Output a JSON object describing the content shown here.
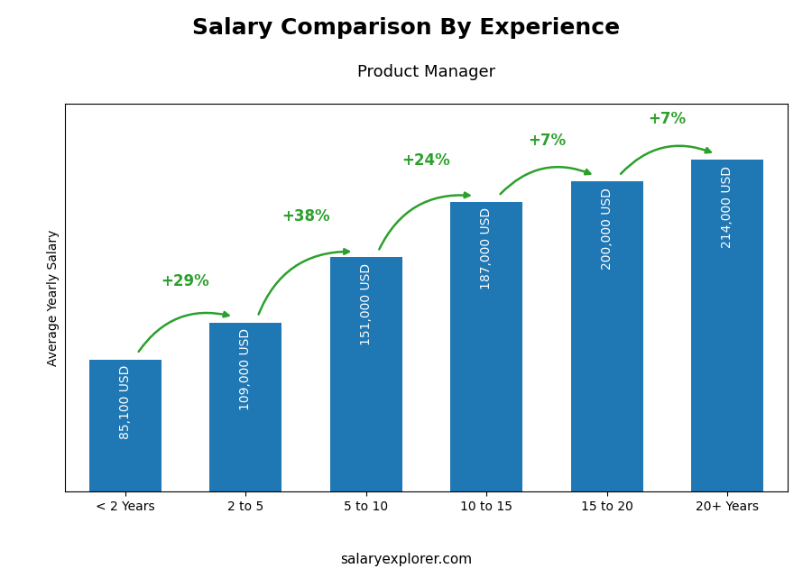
{
  "chart_data": {
    "type": "bar",
    "title": "Salary Comparison By Experience",
    "subtitle": "Product Manager",
    "categories": [
      "< 2 Years",
      "2 to 5",
      "5 to 10",
      "10 to 15",
      "15 to 20",
      "20+ Years"
    ],
    "values": [
      85100,
      109000,
      151000,
      187000,
      200000,
      214000
    ],
    "value_labels": [
      "85,100 USD",
      "109,000 USD",
      "151,000 USD",
      "187,000 USD",
      "200,000 USD",
      "214,000 USD"
    ],
    "data_labels": true,
    "annotations": [
      "+29%",
      "+38%",
      "+24%",
      "+7%",
      "+7%"
    ],
    "ylabel": "Average Yearly Salary",
    "footer": "salaryexplorer.com",
    "ylim": [
      0,
      250000
    ],
    "tick_labels": "x",
    "grid": false
  }
}
